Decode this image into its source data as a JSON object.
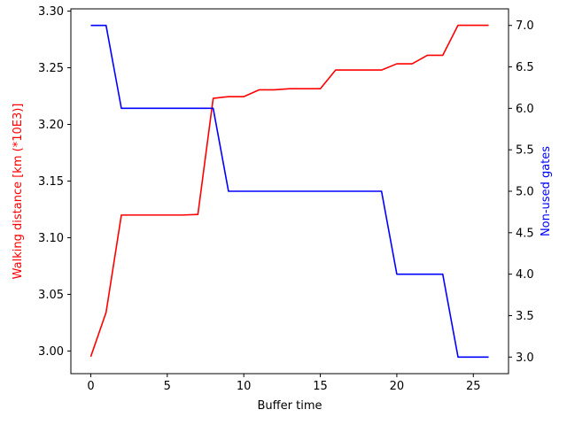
{
  "chart_data": {
    "type": "line",
    "xlabel": "Buffer time",
    "xlim": [
      -1.3,
      27.3
    ],
    "xticks": [
      0,
      5,
      10,
      15,
      20,
      25
    ],
    "x": [
      0,
      1,
      2,
      3,
      4,
      5,
      6,
      7,
      8,
      9,
      10,
      11,
      12,
      13,
      14,
      15,
      16,
      17,
      18,
      19,
      20,
      21,
      22,
      23,
      24,
      25,
      26
    ],
    "series": [
      {
        "name": "Walking distance [km (*10E3)]",
        "axis": "left",
        "color": "#ff0000",
        "values": [
          2.995,
          3.034,
          3.12,
          3.12,
          3.12,
          3.12,
          3.12,
          3.1205,
          3.223,
          3.2245,
          3.2245,
          3.2305,
          3.2305,
          3.2315,
          3.2315,
          3.2315,
          3.248,
          3.248,
          3.248,
          3.248,
          3.2535,
          3.2535,
          3.261,
          3.261,
          3.2875,
          3.2875,
          3.2875
        ]
      },
      {
        "name": "Non-used gates",
        "axis": "right",
        "color": "#0000ff",
        "values": [
          7,
          7,
          6,
          6,
          6,
          6,
          6,
          6,
          6,
          5,
          5,
          5,
          5,
          5,
          5,
          5,
          5,
          5,
          5,
          5,
          4,
          4,
          4,
          4,
          3,
          3,
          3
        ]
      }
    ],
    "left_axis": {
      "label": "Walking distance [km (*10E3)]",
      "color": "#ff0000",
      "ylim": [
        2.98,
        3.302
      ],
      "ticks": [
        3.0,
        3.05,
        3.1,
        3.15,
        3.2,
        3.25,
        3.3
      ],
      "tick_labels": [
        "3.00",
        "3.05",
        "3.10",
        "3.15",
        "3.20",
        "3.25",
        "3.30"
      ]
    },
    "right_axis": {
      "label": "Non-used gates",
      "color": "#0000ff",
      "ylim": [
        2.8,
        7.2
      ],
      "ticks": [
        3.0,
        3.5,
        4.0,
        4.5,
        5.0,
        5.5,
        6.0,
        6.5,
        7.0
      ],
      "tick_labels": [
        "3.0",
        "3.5",
        "4.0",
        "4.5",
        "5.0",
        "5.5",
        "6.0",
        "6.5",
        "7.0"
      ]
    }
  }
}
